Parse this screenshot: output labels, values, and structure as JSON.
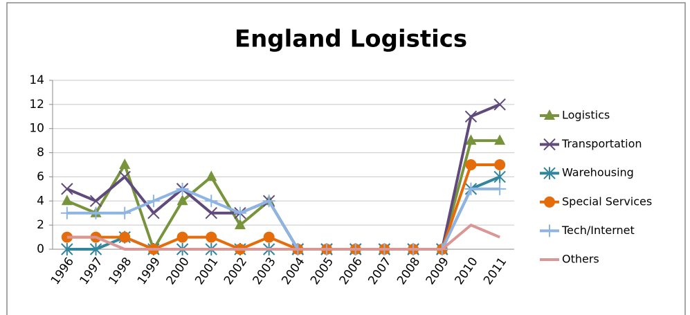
{
  "chart_data": {
    "type": "line",
    "title": "England Logistics",
    "categories": [
      "1996",
      "1997",
      "1998",
      "1999",
      "2000",
      "2001",
      "2002",
      "2003",
      "2004",
      "2005",
      "2006",
      "2007",
      "2008",
      "2009",
      "2010",
      "2011"
    ],
    "series": [
      {
        "name": "Logistics",
        "color": "#77933c",
        "marker": "triangle",
        "values": [
          4,
          3,
          7,
          0,
          4,
          6,
          2,
          4,
          0,
          0,
          0,
          0,
          0,
          0,
          9,
          9
        ]
      },
      {
        "name": "Transportation",
        "color": "#604a7b",
        "marker": "x",
        "values": [
          5,
          4,
          6,
          3,
          5,
          3,
          3,
          4,
          0,
          0,
          0,
          0,
          0,
          0,
          11,
          12
        ]
      },
      {
        "name": "Warehousing",
        "color": "#31859c",
        "marker": "star",
        "values": [
          0,
          0,
          1,
          0,
          0,
          0,
          0,
          0,
          0,
          0,
          0,
          0,
          0,
          0,
          5,
          6
        ]
      },
      {
        "name": "Special Services",
        "color": "#e46c0a",
        "marker": "circle",
        "values": [
          1,
          1,
          1,
          0,
          1,
          1,
          0,
          1,
          0,
          0,
          0,
          0,
          0,
          0,
          7,
          7
        ]
      },
      {
        "name": "Tech/Internet",
        "color": "#8eb4e3",
        "marker": "plus",
        "values": [
          3,
          3,
          3,
          4,
          5,
          4,
          3,
          4,
          0,
          0,
          0,
          0,
          0,
          0,
          5,
          5
        ]
      },
      {
        "name": "Others",
        "color": "#d99694",
        "marker": "none",
        "values": [
          1,
          1,
          0,
          0,
          0,
          0,
          0,
          0,
          0,
          0,
          0,
          0,
          0,
          0,
          2,
          1
        ]
      }
    ],
    "ylim": [
      0,
      14
    ],
    "yticks": [
      0,
      2,
      4,
      6,
      8,
      10,
      12,
      14
    ],
    "grid": true,
    "legend": "right"
  }
}
